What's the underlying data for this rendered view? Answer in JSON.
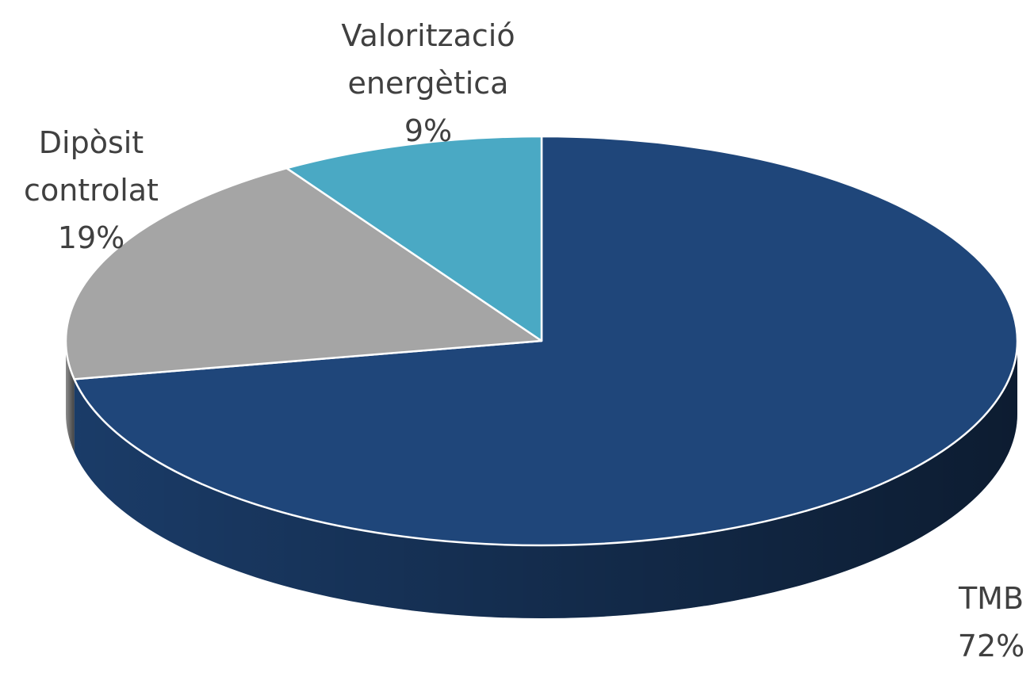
{
  "chart_data": {
    "type": "pie",
    "categories": [
      "TMB",
      "Dipòsit controlat",
      "Valorització energètica"
    ],
    "values": [
      72,
      19,
      9
    ],
    "value_labels": [
      "72%",
      "19%",
      "9%"
    ],
    "colors": [
      "#1f467a",
      "#a5a5a5",
      "#4aa9c4"
    ]
  }
}
